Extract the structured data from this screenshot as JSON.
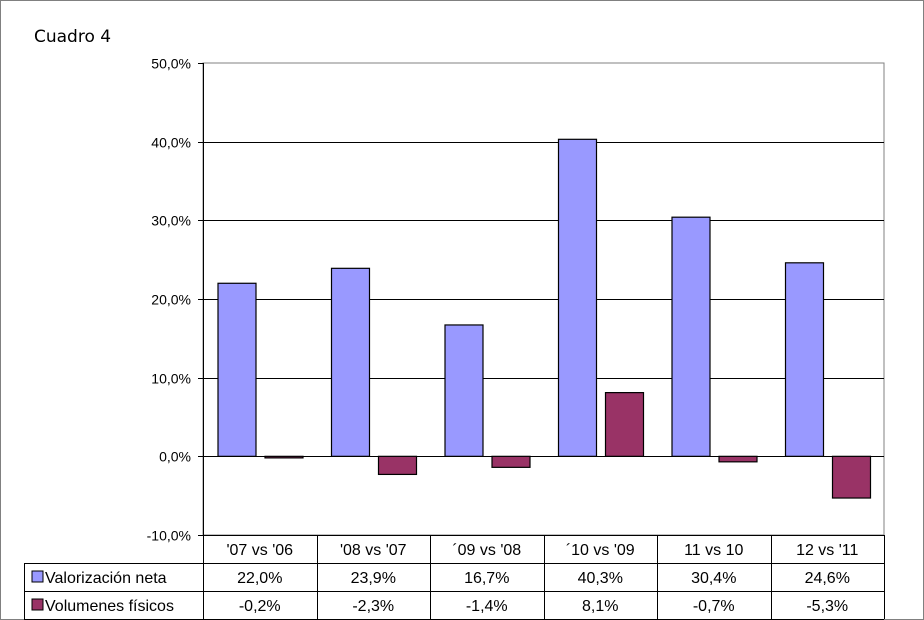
{
  "caption": "Cuadro 4",
  "chart_data": {
    "type": "bar",
    "categories": [
      "'07 vs '06",
      "'08 vs '07",
      "´09 vs '08",
      "´10 vs '09",
      "11 vs 10",
      "12 vs '11"
    ],
    "series": [
      {
        "name": "Valorización neta",
        "color": "#9999ff",
        "values": [
          22.0,
          23.9,
          16.7,
          40.3,
          30.4,
          24.6
        ],
        "labels": [
          "22,0%",
          "23,9%",
          "16,7%",
          "40,3%",
          "30,4%",
          "24,6%"
        ]
      },
      {
        "name": "Volumenes físicos",
        "color": "#993366",
        "values": [
          -0.2,
          -2.3,
          -1.4,
          8.1,
          -0.7,
          -5.3
        ],
        "labels": [
          "-0,2%",
          "-2,3%",
          "-1,4%",
          "8,1%",
          "-0,7%",
          "-5,3%"
        ]
      }
    ],
    "ylim": [
      -10,
      50
    ],
    "yticks": [
      -10,
      0,
      10,
      20,
      30,
      40,
      50
    ],
    "ytick_labels": [
      "-10,0%",
      "0,0%",
      "10,0%",
      "20,0%",
      "30,0%",
      "40,0%",
      "50,0%"
    ],
    "grid": true,
    "legend": "data-table-left"
  }
}
